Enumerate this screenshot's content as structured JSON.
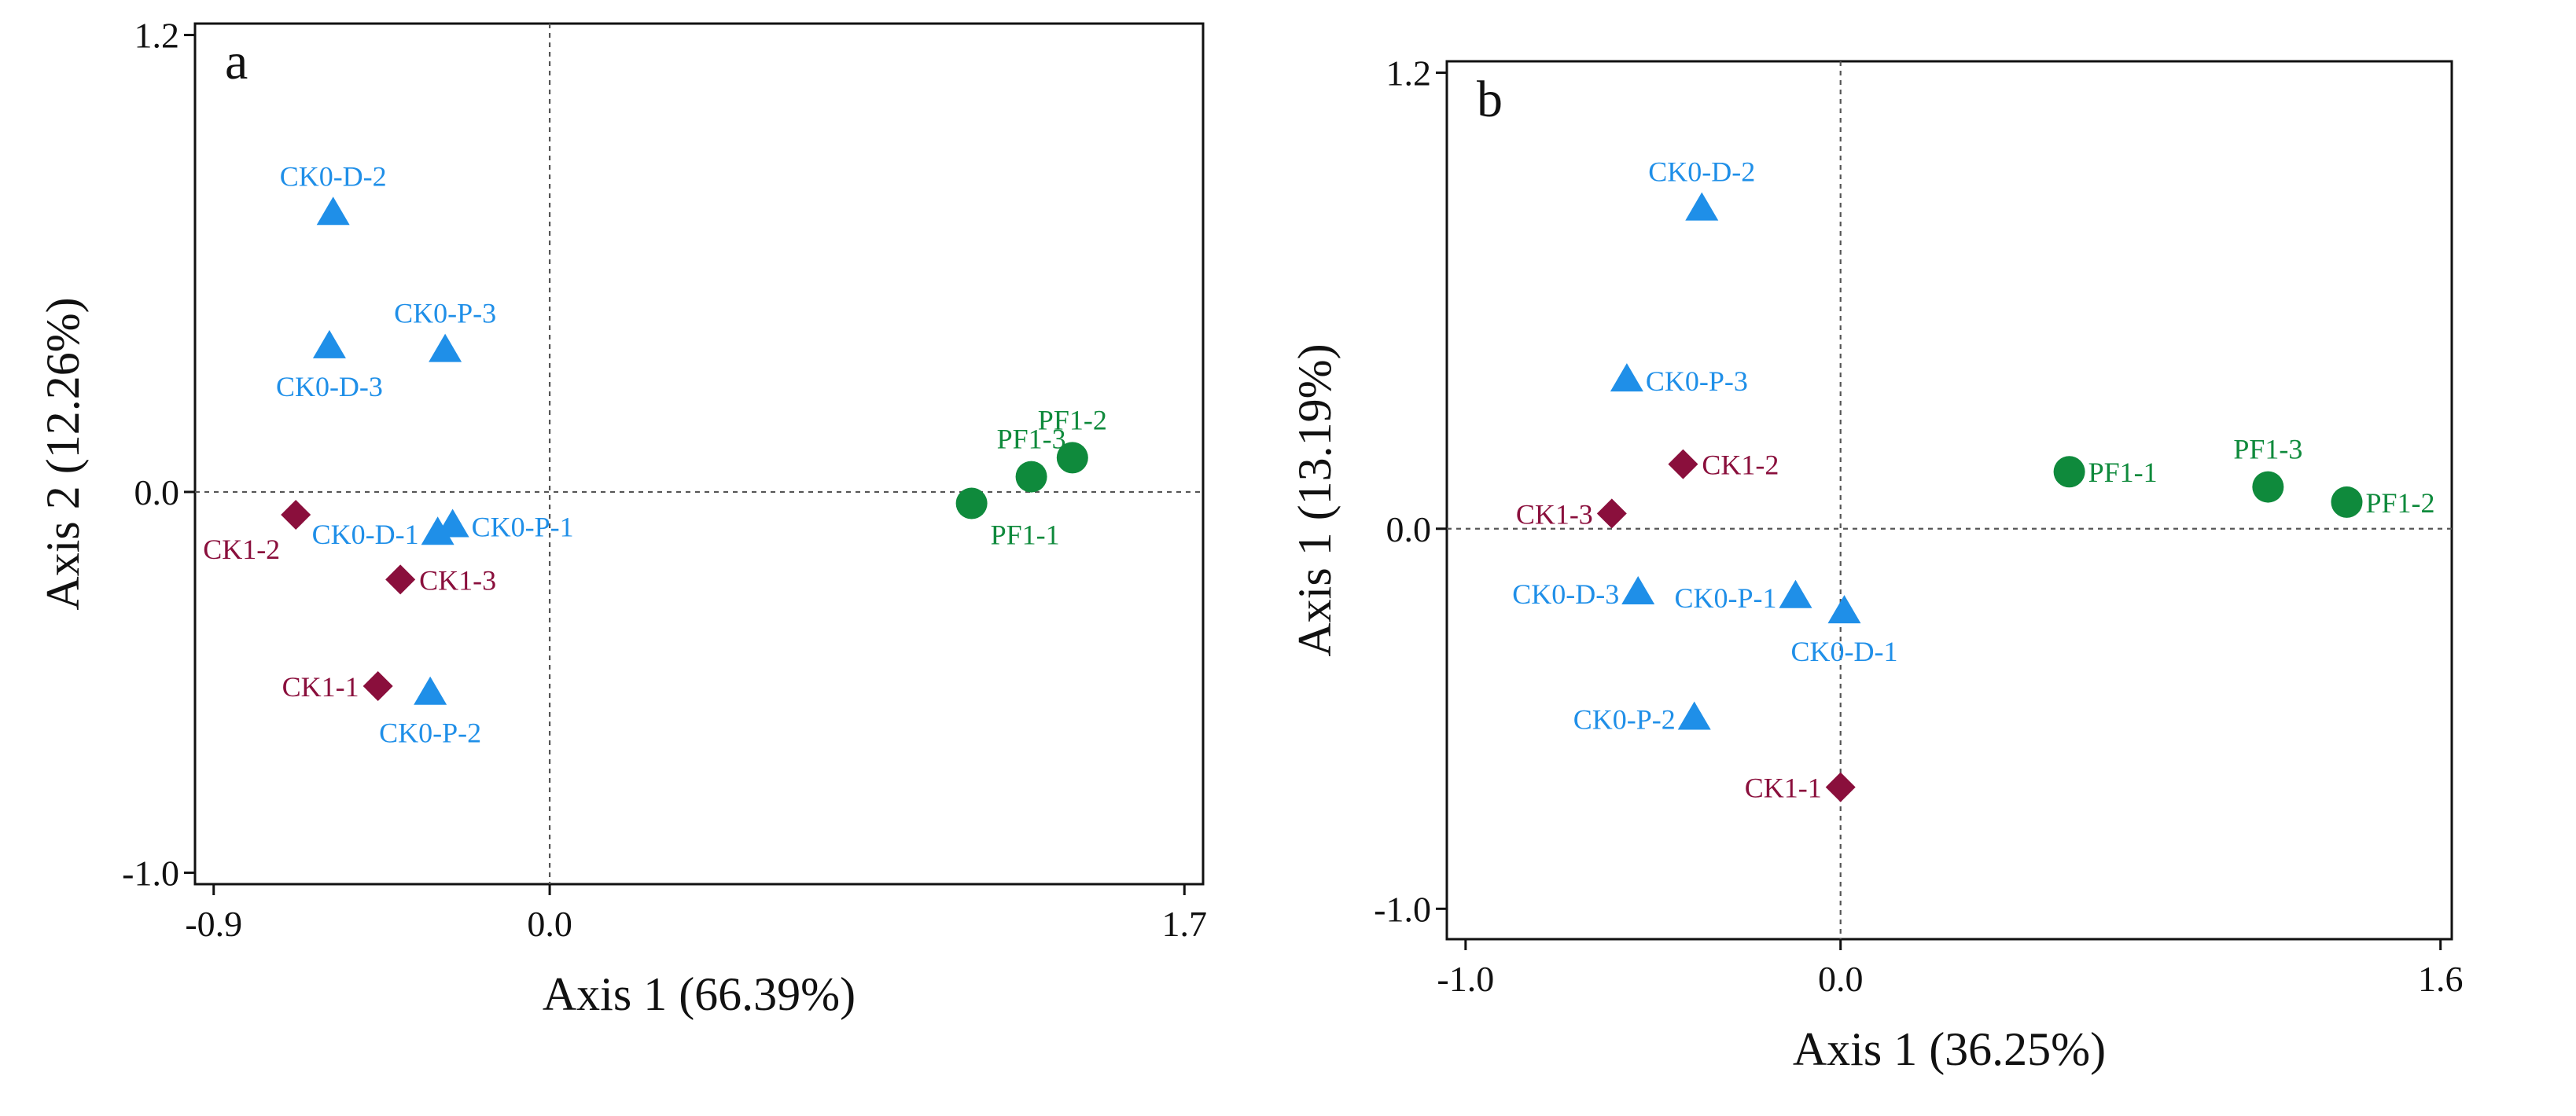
{
  "chart_data": [
    {
      "type": "scatter",
      "panel_label": "a",
      "xlabel": "Axis 1 (66.39%)",
      "ylabel": "Axis 2 (12.26%)",
      "xlim": [
        -0.95,
        1.75
      ],
      "ylim": [
        -1.03,
        1.23
      ],
      "xticks": [
        -0.9,
        0.0,
        1.7
      ],
      "xtick_labels": [
        "-0.9",
        "0.0",
        "1.7"
      ],
      "yticks": [
        -1.0,
        0.0,
        1.2
      ],
      "ytick_labels": [
        "-1.0",
        "0.0",
        "1.2"
      ],
      "zero_lines": true,
      "legend": "none",
      "series": [
        {
          "marker": "triangle",
          "color": "#1f8fe8",
          "points": [
            {
              "label": "CK0-D-2",
              "x": -0.58,
              "y": 0.73,
              "label_pos": "top"
            },
            {
              "label": "CK0-D-3",
              "x": -0.59,
              "y": 0.38,
              "label_pos": "bottom"
            },
            {
              "label": "CK0-P-3",
              "x": -0.28,
              "y": 0.37,
              "label_pos": "top"
            },
            {
              "label": "CK0-D-1",
              "x": -0.3,
              "y": -0.11,
              "label_pos": "left"
            },
            {
              "label": "CK0-P-1",
              "x": -0.26,
              "y": -0.09,
              "label_pos": "right"
            },
            {
              "label": "CK0-P-2",
              "x": -0.32,
              "y": -0.53,
              "label_pos": "bottom"
            }
          ]
        },
        {
          "marker": "diamond",
          "color": "#8a0f3c",
          "points": [
            {
              "label": "CK1-2",
              "x": -0.68,
              "y": -0.06,
              "label_pos": "bottom-left"
            },
            {
              "label": "CK1-3",
              "x": -0.4,
              "y": -0.23,
              "label_pos": "right"
            },
            {
              "label": "CK1-1",
              "x": -0.46,
              "y": -0.51,
              "label_pos": "left"
            }
          ]
        },
        {
          "marker": "circle",
          "color": "#0f8a3c",
          "points": [
            {
              "label": "PF1-1",
              "x": 1.13,
              "y": -0.03,
              "label_pos": "bottom-right"
            },
            {
              "label": "PF1-3",
              "x": 1.29,
              "y": 0.04,
              "label_pos": "top"
            },
            {
              "label": "PF1-2",
              "x": 1.4,
              "y": 0.09,
              "label_pos": "top"
            }
          ]
        }
      ]
    },
    {
      "type": "scatter",
      "panel_label": "b",
      "xlabel": "Axis 1 (36.25%)",
      "ylabel": "Axis 1 (13.19%)",
      "xlim": [
        -1.05,
        1.63
      ],
      "ylim": [
        -1.08,
        1.23
      ],
      "xticks": [
        -1.0,
        0.0,
        1.6
      ],
      "xtick_labels": [
        "-1.0",
        "0.0",
        "1.6"
      ],
      "yticks": [
        -1.0,
        0.0,
        1.2
      ],
      "ytick_labels": [
        "-1.0",
        "0.0",
        "1.2"
      ],
      "zero_lines": true,
      "legend": "none",
      "series": [
        {
          "marker": "triangle",
          "color": "#1f8fe8",
          "points": [
            {
              "label": "CK0-D-2",
              "x": -0.37,
              "y": 0.84,
              "label_pos": "top"
            },
            {
              "label": "CK0-P-3",
              "x": -0.57,
              "y": 0.39,
              "label_pos": "right"
            },
            {
              "label": "CK0-D-3",
              "x": -0.54,
              "y": -0.17,
              "label_pos": "left"
            },
            {
              "label": "CK0-P-1",
              "x": -0.12,
              "y": -0.18,
              "label_pos": "left"
            },
            {
              "label": "CK0-D-1",
              "x": 0.01,
              "y": -0.22,
              "label_pos": "bottom"
            },
            {
              "label": "CK0-P-2",
              "x": -0.39,
              "y": -0.5,
              "label_pos": "left"
            }
          ]
        },
        {
          "marker": "diamond",
          "color": "#8a0f3c",
          "points": [
            {
              "label": "CK1-2",
              "x": -0.42,
              "y": 0.17,
              "label_pos": "right"
            },
            {
              "label": "CK1-3",
              "x": -0.61,
              "y": 0.04,
              "label_pos": "left"
            },
            {
              "label": "CK1-1",
              "x": 0.0,
              "y": -0.68,
              "label_pos": "left"
            }
          ]
        },
        {
          "marker": "circle",
          "color": "#0f8a3c",
          "points": [
            {
              "label": "PF1-1",
              "x": 0.61,
              "y": 0.15,
              "label_pos": "right"
            },
            {
              "label": "PF1-3",
              "x": 1.14,
              "y": 0.11,
              "label_pos": "top"
            },
            {
              "label": "PF1-2",
              "x": 1.35,
              "y": 0.07,
              "label_pos": "right"
            }
          ]
        }
      ]
    }
  ]
}
